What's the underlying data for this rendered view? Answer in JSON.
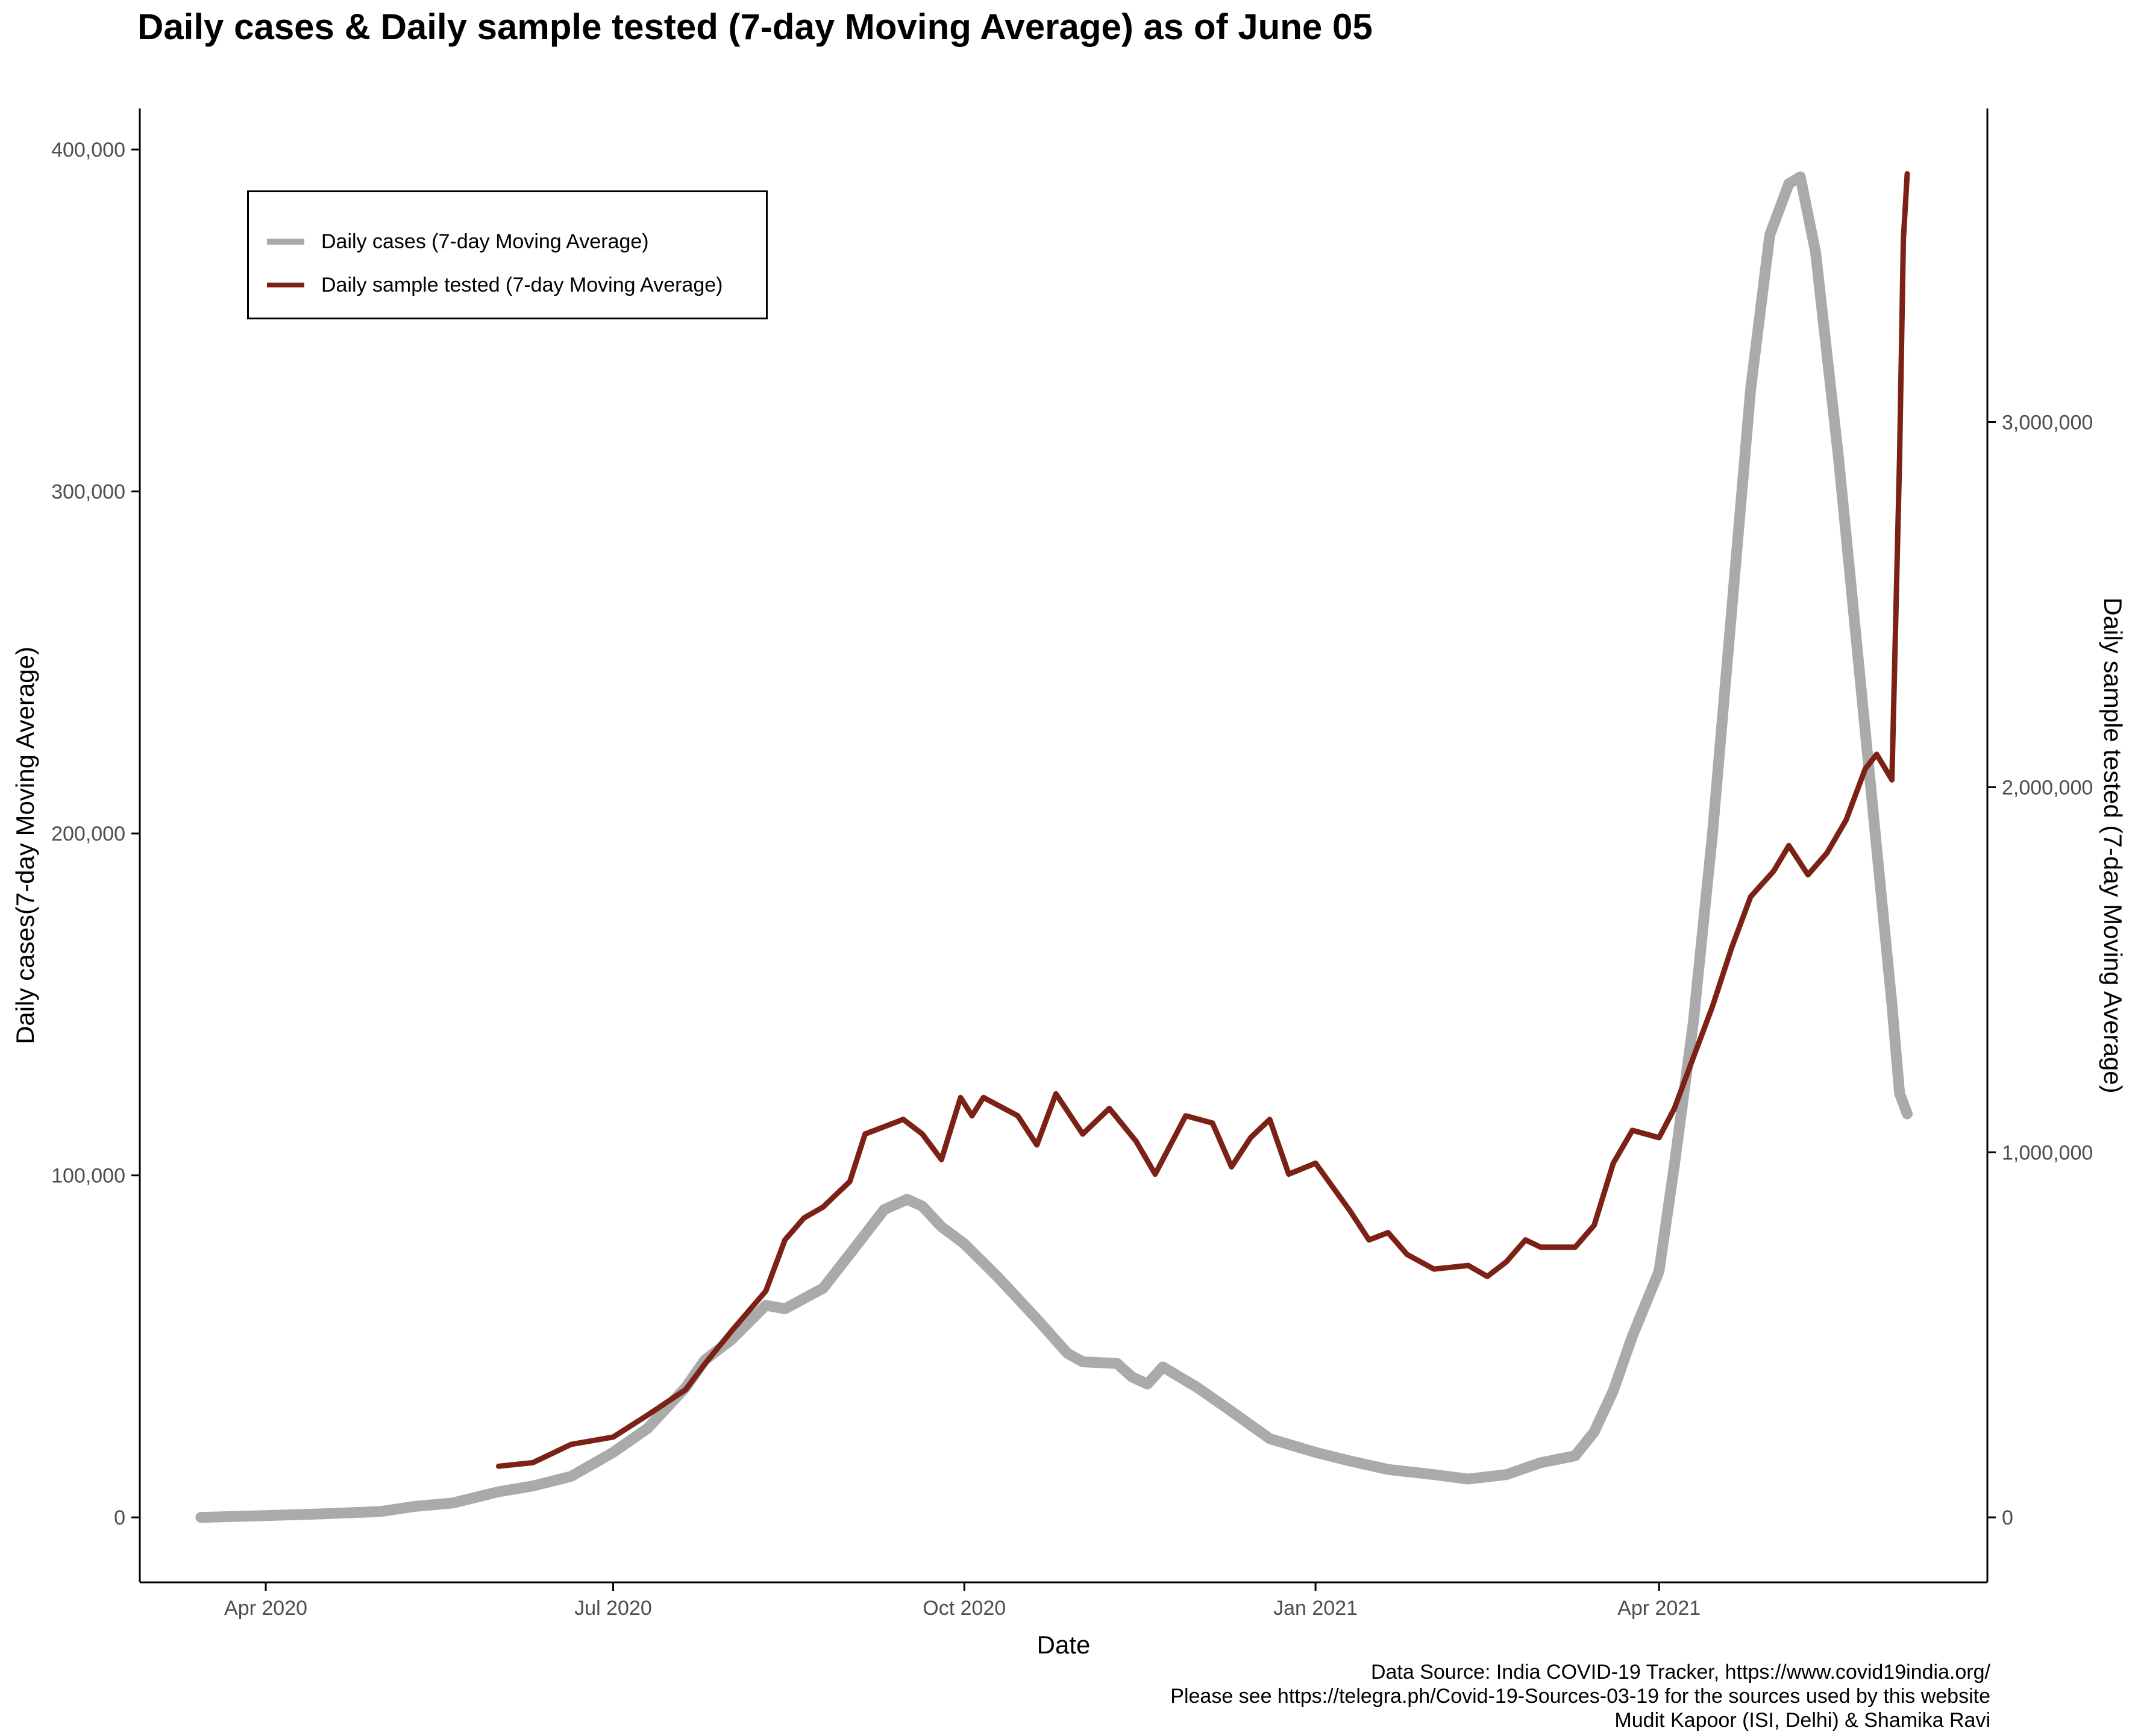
{
  "title": "Daily cases & Daily sample tested (7-day Moving Average) as of June 05",
  "caption": {
    "line1": "Data Source: India COVID-19 Tracker, https://www.covid19india.org/",
    "line2": "Please see https://telegra.ph/Covid-19-Sources-03-19 for the sources used by this website",
    "line3": "Mudit Kapoor (ISI, Delhi) & Shamika Ravi"
  },
  "colors": {
    "cases": "#AAAAAA",
    "tests": "#7B2115",
    "axis": "#000000",
    "ticklabel": "#4D4D4D"
  },
  "chart_data": {
    "type": "line",
    "title": "Daily cases & Daily sample tested (7-day Moving Average) as of June 05",
    "xlabel": "Date",
    "ylabel": "Daily cases(7-day Moving Average)",
    "y2label": "Daily sample tested (7-day Moving Average)",
    "x_ticks": [
      {
        "date": "2020-04-01",
        "label": "Apr 2020"
      },
      {
        "date": "2020-07-01",
        "label": "Jul 2020"
      },
      {
        "date": "2020-10-01",
        "label": "Oct 2020"
      },
      {
        "date": "2021-01-01",
        "label": "Jan 2021"
      },
      {
        "date": "2021-04-01",
        "label": "Apr 2021"
      }
    ],
    "y_ticks": [
      {
        "value": 0,
        "label": "0"
      },
      {
        "value": 100000,
        "label": "100,000"
      },
      {
        "value": 200000,
        "label": "200,000"
      },
      {
        "value": 300000,
        "label": "300,000"
      },
      {
        "value": 400000,
        "label": "400,000"
      }
    ],
    "y2_ticks": [
      {
        "value": 0,
        "label": "0"
      },
      {
        "value": 1000000,
        "label": "1,000,000"
      },
      {
        "value": 2000000,
        "label": "2,000,000"
      },
      {
        "value": 3000000,
        "label": "3,000,000"
      }
    ],
    "xlim": [
      "2020-02-28",
      "2021-06-26"
    ],
    "ylim": [
      -19000,
      412000
    ],
    "y2lim": [
      -178000,
      3859000
    ],
    "grid": false,
    "legend_position": "top-left",
    "series": [
      {
        "name": "Daily cases (7-day Moving Average)",
        "axis": "left",
        "points": [
          [
            "2020-03-15",
            0
          ],
          [
            "2020-04-01",
            500
          ],
          [
            "2020-04-15",
            1000
          ],
          [
            "2020-05-01",
            1700
          ],
          [
            "2020-05-10",
            3200
          ],
          [
            "2020-05-20",
            4200
          ],
          [
            "2020-06-01",
            7500
          ],
          [
            "2020-06-10",
            9200
          ],
          [
            "2020-06-20",
            12000
          ],
          [
            "2020-07-01",
            19000
          ],
          [
            "2020-07-10",
            26000
          ],
          [
            "2020-07-20",
            38000
          ],
          [
            "2020-07-25",
            46000
          ],
          [
            "2020-08-01",
            52000
          ],
          [
            "2020-08-10",
            62000
          ],
          [
            "2020-08-15",
            61000
          ],
          [
            "2020-08-25",
            67000
          ],
          [
            "2020-09-01",
            77000
          ],
          [
            "2020-09-10",
            90000
          ],
          [
            "2020-09-16",
            93000
          ],
          [
            "2020-09-20",
            91000
          ],
          [
            "2020-09-25",
            85000
          ],
          [
            "2020-10-01",
            80000
          ],
          [
            "2020-10-10",
            70000
          ],
          [
            "2020-10-20",
            58000
          ],
          [
            "2020-10-28",
            48000
          ],
          [
            "2020-11-01",
            45500
          ],
          [
            "2020-11-10",
            45000
          ],
          [
            "2020-11-14",
            41000
          ],
          [
            "2020-11-18",
            39000
          ],
          [
            "2020-11-22",
            44000
          ],
          [
            "2020-12-01",
            38000
          ],
          [
            "2020-12-10",
            31000
          ],
          [
            "2020-12-20",
            23000
          ],
          [
            "2021-01-01",
            19000
          ],
          [
            "2021-01-10",
            16500
          ],
          [
            "2021-01-20",
            14000
          ],
          [
            "2021-02-01",
            12500
          ],
          [
            "2021-02-10",
            11200
          ],
          [
            "2021-02-20",
            12500
          ],
          [
            "2021-03-01",
            16000
          ],
          [
            "2021-03-10",
            18000
          ],
          [
            "2021-03-15",
            25000
          ],
          [
            "2021-03-20",
            37000
          ],
          [
            "2021-03-25",
            53000
          ],
          [
            "2021-04-01",
            72000
          ],
          [
            "2021-04-05",
            103000
          ],
          [
            "2021-04-10",
            145000
          ],
          [
            "2021-04-15",
            200000
          ],
          [
            "2021-04-20",
            265000
          ],
          [
            "2021-04-25",
            330000
          ],
          [
            "2021-04-30",
            375000
          ],
          [
            "2021-05-05",
            390000
          ],
          [
            "2021-05-08",
            392000
          ],
          [
            "2021-05-12",
            370000
          ],
          [
            "2021-05-18",
            310000
          ],
          [
            "2021-05-25",
            230000
          ],
          [
            "2021-06-01",
            150000
          ],
          [
            "2021-06-03",
            124000
          ],
          [
            "2021-06-05",
            118000
          ]
        ]
      },
      {
        "name": "Daily sample tested (7-day Moving Average)",
        "axis": "right",
        "points": [
          [
            "2020-06-01",
            140000
          ],
          [
            "2020-06-10",
            150000
          ],
          [
            "2020-06-20",
            200000
          ],
          [
            "2020-07-01",
            220000
          ],
          [
            "2020-07-10",
            280000
          ],
          [
            "2020-07-20",
            350000
          ],
          [
            "2020-07-25",
            420000
          ],
          [
            "2020-08-01",
            510000
          ],
          [
            "2020-08-10",
            620000
          ],
          [
            "2020-08-15",
            760000
          ],
          [
            "2020-08-20",
            820000
          ],
          [
            "2020-08-25",
            850000
          ],
          [
            "2020-09-01",
            920000
          ],
          [
            "2020-09-05",
            1050000
          ],
          [
            "2020-09-10",
            1070000
          ],
          [
            "2020-09-15",
            1090000
          ],
          [
            "2020-09-20",
            1050000
          ],
          [
            "2020-09-25",
            980000
          ],
          [
            "2020-09-30",
            1150000
          ],
          [
            "2020-10-03",
            1100000
          ],
          [
            "2020-10-06",
            1150000
          ],
          [
            "2020-10-15",
            1100000
          ],
          [
            "2020-10-20",
            1020000
          ],
          [
            "2020-10-25",
            1160000
          ],
          [
            "2020-11-01",
            1050000
          ],
          [
            "2020-11-08",
            1120000
          ],
          [
            "2020-11-15",
            1030000
          ],
          [
            "2020-11-20",
            940000
          ],
          [
            "2020-11-28",
            1100000
          ],
          [
            "2020-12-05",
            1080000
          ],
          [
            "2020-12-10",
            960000
          ],
          [
            "2020-12-15",
            1040000
          ],
          [
            "2020-12-20",
            1090000
          ],
          [
            "2020-12-25",
            940000
          ],
          [
            "2021-01-01",
            970000
          ],
          [
            "2021-01-10",
            840000
          ],
          [
            "2021-01-15",
            760000
          ],
          [
            "2021-01-20",
            780000
          ],
          [
            "2021-01-25",
            720000
          ],
          [
            "2021-02-01",
            680000
          ],
          [
            "2021-02-10",
            690000
          ],
          [
            "2021-02-15",
            660000
          ],
          [
            "2021-02-20",
            700000
          ],
          [
            "2021-02-25",
            760000
          ],
          [
            "2021-03-01",
            740000
          ],
          [
            "2021-03-10",
            740000
          ],
          [
            "2021-03-15",
            800000
          ],
          [
            "2021-03-20",
            970000
          ],
          [
            "2021-03-25",
            1060000
          ],
          [
            "2021-04-01",
            1040000
          ],
          [
            "2021-04-05",
            1120000
          ],
          [
            "2021-04-10",
            1260000
          ],
          [
            "2021-04-15",
            1400000
          ],
          [
            "2021-04-20",
            1560000
          ],
          [
            "2021-04-25",
            1700000
          ],
          [
            "2021-05-01",
            1770000
          ],
          [
            "2021-05-05",
            1840000
          ],
          [
            "2021-05-10",
            1760000
          ],
          [
            "2021-05-15",
            1820000
          ],
          [
            "2021-05-20",
            1910000
          ],
          [
            "2021-05-25",
            2050000
          ],
          [
            "2021-05-28",
            2090000
          ],
          [
            "2021-06-01",
            2020000
          ],
          [
            "2021-06-03",
            2900000
          ],
          [
            "2021-06-04",
            3500000
          ],
          [
            "2021-06-05",
            3680000
          ]
        ]
      }
    ]
  }
}
